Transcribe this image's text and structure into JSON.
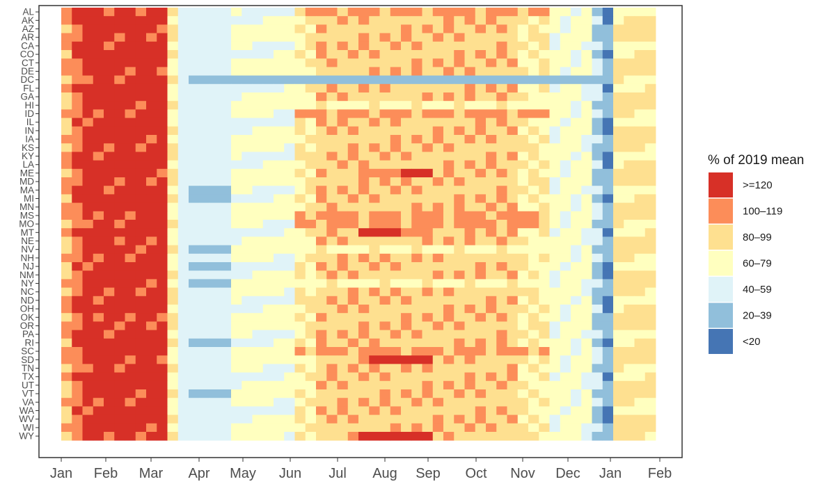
{
  "chart_data": {
    "type": "heatmap",
    "title": "",
    "xlabel": "",
    "ylabel": "",
    "x_tick_labels": [
      "Jan",
      "Feb",
      "Mar",
      "Apr",
      "May",
      "Jun",
      "Jul",
      "Aug",
      "Sep",
      "Oct",
      "Nov",
      "Dec",
      "Jan",
      "Feb"
    ],
    "y_categories": [
      "AL",
      "AK",
      "AZ",
      "AR",
      "CA",
      "CO",
      "CT",
      "DE",
      "DC",
      "FL",
      "GA",
      "HI",
      "ID",
      "IL",
      "IN",
      "IA",
      "KS",
      "KY",
      "LA",
      "ME",
      "MD",
      "MA",
      "MI",
      "MN",
      "MS",
      "MO",
      "MT",
      "NE",
      "NV",
      "NH",
      "NJ",
      "NM",
      "NY",
      "NC",
      "ND",
      "OH",
      "OK",
      "OR",
      "PA",
      "RI",
      "SC",
      "SD",
      "TN",
      "TX",
      "UT",
      "VT",
      "VA",
      "WA",
      "WV",
      "WI",
      "WY"
    ],
    "legend": {
      "title": "% of 2019 mean",
      "position": "right",
      "bins": [
        {
          "label": ">=120",
          "color": "#d73027"
        },
        {
          "label": "100–119",
          "color": "#fc8d59"
        },
        {
          "label": "80–99",
          "color": "#fee090"
        },
        {
          "label": "60–79",
          "color": "#ffffbf"
        },
        {
          "label": "40–59",
          "color": "#e0f3f8"
        },
        {
          "label": "20–39",
          "color": "#91bfdb"
        },
        {
          "label": "<20",
          "color": "#4575b4"
        }
      ]
    },
    "n_weeks": 56,
    "grid": false
  }
}
